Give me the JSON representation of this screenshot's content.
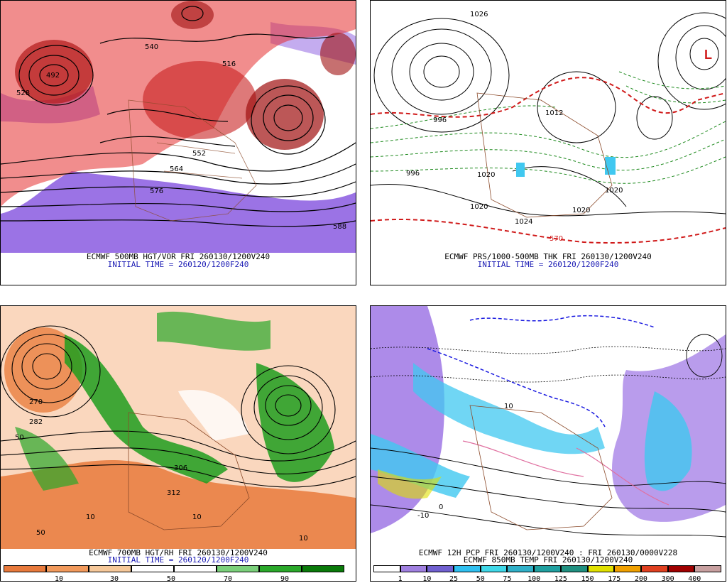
{
  "panels": [
    {
      "id": "p1",
      "caption": "ECMWF 500MB HGT/VOR FRI 260130/1200V240",
      "init": "INITIAL TIME = 260120/1200F240",
      "labels": [
        "492",
        "528",
        "552",
        "564",
        "576",
        "588",
        "516",
        "540"
      ]
    },
    {
      "id": "p2",
      "caption": "ECMWF PRS/1000-500MB THK FRI 260130/1200V240",
      "init": "INITIAL TIME = 260120/1200F240",
      "labels": [
        "1026",
        "996",
        "1012",
        "1020",
        "1020",
        "1020",
        "1020",
        "1024",
        "996",
        "570"
      ]
    },
    {
      "id": "p3",
      "caption": "ECMWF 700MB HGT/RH FRI 260130/1200V240",
      "init": "INITIAL TIME = 260120/1200F240",
      "labels": [
        "270",
        "282",
        "306",
        "312",
        "10",
        "50",
        "10",
        "50",
        "10"
      ]
    },
    {
      "id": "p4",
      "caption": "ECMWF 12H PCP FRI 260130/1200V240 : FRI 260130/0000V228",
      "init": "ECMWF 850MB TEMP FRI 260130/1200V240",
      "labels": [
        "-10",
        "0",
        "10"
      ]
    }
  ],
  "rh_colorbar": {
    "labels": [
      "10",
      "30",
      "50",
      "70",
      "90"
    ],
    "colors": [
      "#e87a3c",
      "#f29a5c",
      "#f6c89a",
      "#ffffff",
      "#ffffff",
      "#7bd07b",
      "#2aa82a",
      "#0a7a0a"
    ]
  },
  "pcp_colorbar": {
    "labels": [
      "1",
      "10",
      "25",
      "50",
      "75",
      "100",
      "125",
      "150",
      "175",
      "200",
      "300",
      "400"
    ],
    "colors": [
      "#ffffff",
      "#a080e0",
      "#7060d0",
      "#30c0f0",
      "#40d8e8",
      "#30b0c8",
      "#20a0a0",
      "#209080",
      "#e0e000",
      "#f0a000",
      "#e04020",
      "#a00000",
      "#c8a0a0"
    ]
  },
  "colors": {
    "red_vort": "#d8202a",
    "purple": "#8a5ae0",
    "green_rh": "#1e9e1e",
    "orange_rh": "#ea8040",
    "cyan_pcp": "#40c8f0",
    "blue_temp": "#1a1ae0"
  }
}
